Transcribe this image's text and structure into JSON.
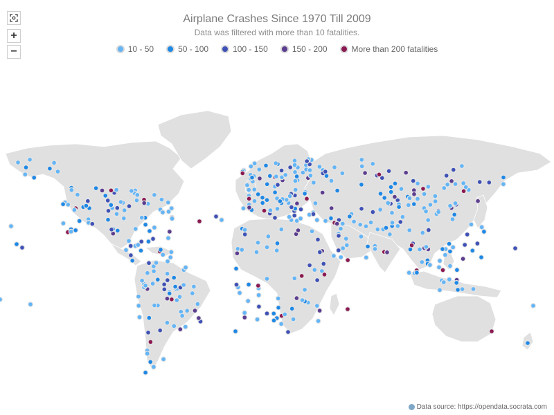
{
  "header": {
    "title": "Airplane Crashes Since 1970 Till 2009",
    "subtitle": "Data was filtered with more than 10 fatalities."
  },
  "legend": [
    {
      "label": "10 - 50",
      "color": "#64b5f6"
    },
    {
      "label": "50 - 100",
      "color": "#1e88e5"
    },
    {
      "label": "100 - 150",
      "color": "#3f51b5"
    },
    {
      "label": "150 - 200",
      "color": "#5c3d8f"
    },
    {
      "label": "More than 200 fatalities",
      "color": "#8b1a52"
    }
  ],
  "controls": {
    "fit_icon": "fit-to-screen-icon",
    "zoom_in_label": "+",
    "zoom_out_label": "−"
  },
  "credit": {
    "text": "Data source: https://opendata.socrata.com",
    "icon": "info-icon"
  },
  "colors": {
    "land": "#e0e0e0",
    "land_stroke": "#ffffff"
  }
}
